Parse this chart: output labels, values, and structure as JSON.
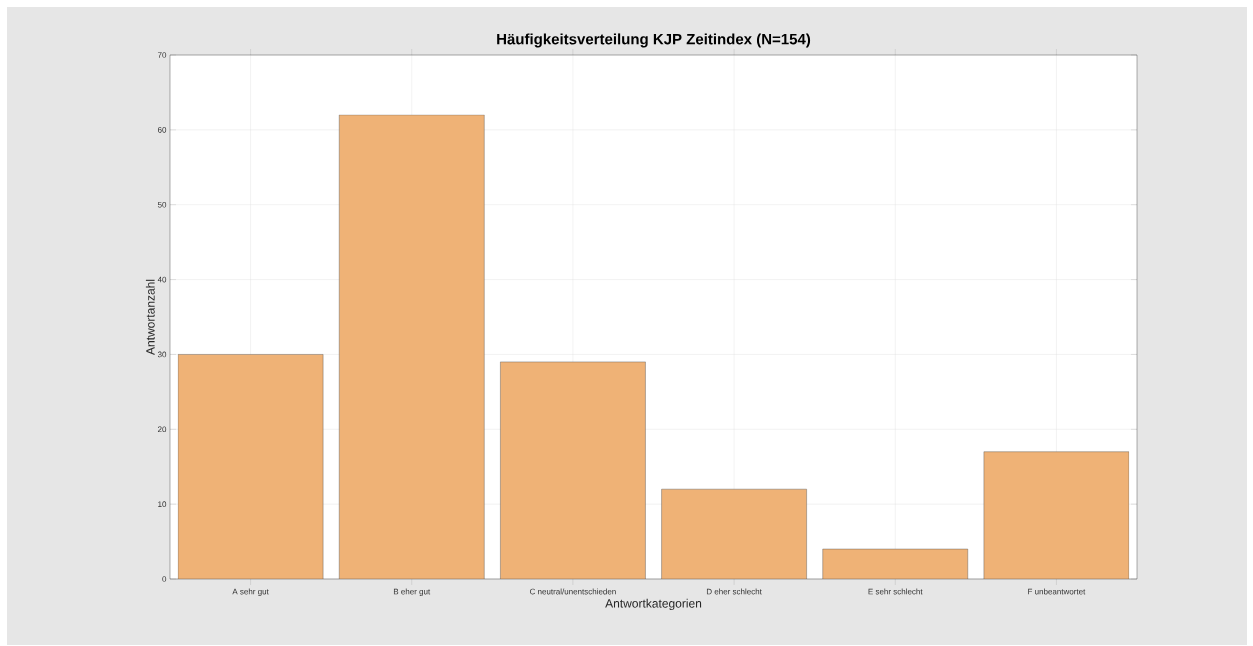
{
  "chart_data": {
    "type": "bar",
    "title": "Häufigkeitsverteilung KJP Zeitindex (N=154)",
    "xlabel": "Antwortkategorien",
    "ylabel": "Antwortanzahl",
    "categories": [
      "A sehr gut",
      "B eher gut",
      "C neutral/unentschieden",
      "D eher schlecht",
      "E sehr schlecht",
      "F unbeantwortet"
    ],
    "values": [
      30,
      62,
      29,
      12,
      4,
      17
    ],
    "color": "#efb276",
    "ylim": [
      0,
      70
    ],
    "yticks": [
      0,
      10,
      20,
      30,
      40,
      50,
      60,
      70
    ],
    "grid": true
  }
}
